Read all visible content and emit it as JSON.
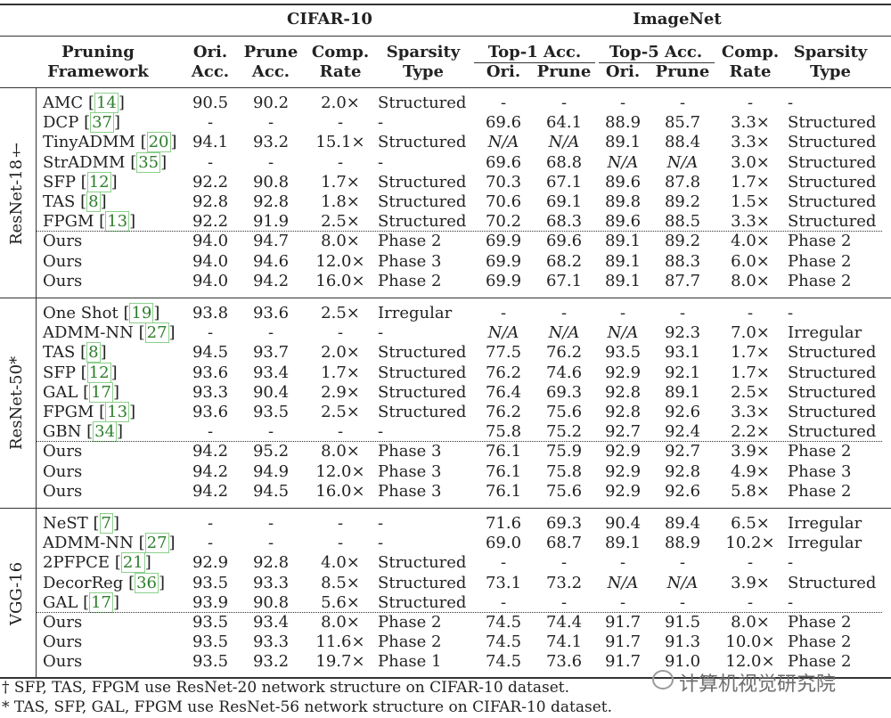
{
  "header": {
    "cifar": "CIFAR-10",
    "imagenet": "ImageNet",
    "pruning_framework": [
      "Pruning",
      "Framework"
    ],
    "ori_acc": [
      "Ori.",
      "Acc."
    ],
    "prune_acc": [
      "Prune",
      "Acc."
    ],
    "comp_rate": [
      "Comp.",
      "Rate"
    ],
    "sparsity_type": [
      "Sparsity",
      "Type"
    ],
    "top1": "Top-1 Acc.",
    "top5": "Top-5 Acc.",
    "ori": "Ori.",
    "prune": "Prune"
  },
  "groups": [
    {
      "label": "ResNet-18†",
      "rows": [
        {
          "name": "AMC",
          "ref": "14",
          "c_ori": "90.5",
          "c_prune": "90.2",
          "c_rate": "2.0×",
          "c_type": "Structured",
          "t1_ori": "-",
          "t1_prune": "-",
          "t5_ori": "-",
          "t5_prune": "-",
          "i_rate": "-",
          "i_type": "-"
        },
        {
          "name": "DCP",
          "ref": "37",
          "c_ori": "-",
          "c_prune": "-",
          "c_rate": "-",
          "c_type": "-",
          "t1_ori": "69.6",
          "t1_prune": "64.1",
          "t5_ori": "88.9",
          "t5_prune": "85.7",
          "i_rate": "3.3×",
          "i_type": "Structured"
        },
        {
          "name": "TinyADMM",
          "ref": "20",
          "c_ori": "94.1",
          "c_prune": "93.2",
          "c_rate": "15.1×",
          "c_type": "Structured",
          "t1_ori": "N/A",
          "t1_prune": "N/A",
          "t5_ori": "89.1",
          "t5_prune": "88.4",
          "i_rate": "3.3×",
          "i_type": "Structured"
        },
        {
          "name": "StrADMM",
          "ref": "35",
          "c_ori": "-",
          "c_prune": "-",
          "c_rate": "-",
          "c_type": "-",
          "t1_ori": "69.6",
          "t1_prune": "68.8",
          "t5_ori": "N/A",
          "t5_prune": "N/A",
          "i_rate": "3.0×",
          "i_type": "Structured"
        },
        {
          "name": "SFP",
          "ref": "12",
          "c_ori": "92.2",
          "c_prune": "90.8",
          "c_rate": "1.7×",
          "c_type": "Structured",
          "t1_ori": "70.3",
          "t1_prune": "67.1",
          "t5_ori": "89.6",
          "t5_prune": "87.8",
          "i_rate": "1.7×",
          "i_type": "Structured"
        },
        {
          "name": "TAS",
          "ref": "8",
          "c_ori": "92.8",
          "c_prune": "92.8",
          "c_rate": "1.8×",
          "c_type": "Structured",
          "t1_ori": "70.6",
          "t1_prune": "69.1",
          "t5_ori": "89.8",
          "t5_prune": "89.2",
          "i_rate": "1.5×",
          "i_type": "Structured"
        },
        {
          "name": "FPGM",
          "ref": "13",
          "c_ori": "92.2",
          "c_prune": "91.9",
          "c_rate": "2.5×",
          "c_type": "Structured",
          "t1_ori": "70.2",
          "t1_prune": "68.3",
          "t5_ori": "89.6",
          "t5_prune": "88.5",
          "i_rate": "3.3×",
          "i_type": "Structured"
        },
        {
          "name": "Ours",
          "ref": "",
          "c_ori": "94.0",
          "c_prune": "94.7",
          "c_rate": "8.0×",
          "c_type": "Phase 2",
          "t1_ori": "69.9",
          "t1_prune": "69.6",
          "t5_ori": "89.1",
          "t5_prune": "89.2",
          "i_rate": "4.0×",
          "i_type": "Phase 2"
        },
        {
          "name": "Ours",
          "ref": "",
          "c_ori": "94.0",
          "c_prune": "94.6",
          "c_rate": "12.0×",
          "c_type": "Phase 3",
          "t1_ori": "69.9",
          "t1_prune": "68.2",
          "t5_ori": "89.1",
          "t5_prune": "88.3",
          "i_rate": "6.0×",
          "i_type": "Phase 2"
        },
        {
          "name": "Ours",
          "ref": "",
          "c_ori": "94.0",
          "c_prune": "94.2",
          "c_rate": "16.0×",
          "c_type": "Phase 2",
          "t1_ori": "69.9",
          "t1_prune": "67.1",
          "t5_ori": "89.1",
          "t5_prune": "87.7",
          "i_rate": "8.0×",
          "i_type": "Phase 2"
        }
      ]
    },
    {
      "label": "ResNet-50*",
      "rows": [
        {
          "name": "One Shot",
          "ref": "19",
          "c_ori": "93.8",
          "c_prune": "93.6",
          "c_rate": "2.5×",
          "c_type": "Irregular",
          "t1_ori": "-",
          "t1_prune": "-",
          "t5_ori": "-",
          "t5_prune": "-",
          "i_rate": "-",
          "i_type": "-"
        },
        {
          "name": "ADMM-NN",
          "ref": "27",
          "c_ori": "-",
          "c_prune": "-",
          "c_rate": "-",
          "c_type": "-",
          "t1_ori": "N/A",
          "t1_prune": "N/A",
          "t5_ori": "N/A",
          "t5_prune": "92.3",
          "i_rate": "7.0×",
          "i_type": "Irregular"
        },
        {
          "name": "TAS",
          "ref": "8",
          "c_ori": "94.5",
          "c_prune": "93.7",
          "c_rate": "2.0×",
          "c_type": "Structured",
          "t1_ori": "77.5",
          "t1_prune": "76.2",
          "t5_ori": "93.5",
          "t5_prune": "93.1",
          "i_rate": "1.7×",
          "i_type": "Structured"
        },
        {
          "name": "SFP",
          "ref": "12",
          "c_ori": "93.6",
          "c_prune": "93.4",
          "c_rate": "1.7×",
          "c_type": "Structured",
          "t1_ori": "76.2",
          "t1_prune": "74.6",
          "t5_ori": "92.9",
          "t5_prune": "92.1",
          "i_rate": "1.7×",
          "i_type": "Structured"
        },
        {
          "name": "GAL",
          "ref": "17",
          "c_ori": "93.3",
          "c_prune": "90.4",
          "c_rate": "2.9×",
          "c_type": "Structured",
          "t1_ori": "76.4",
          "t1_prune": "69.3",
          "t5_ori": "92.8",
          "t5_prune": "89.1",
          "i_rate": "2.5×",
          "i_type": "Structured"
        },
        {
          "name": "FPGM",
          "ref": "13",
          "c_ori": "93.6",
          "c_prune": "93.5",
          "c_rate": "2.5×",
          "c_type": "Structured",
          "t1_ori": "76.2",
          "t1_prune": "75.6",
          "t5_ori": "92.8",
          "t5_prune": "92.6",
          "i_rate": "3.3×",
          "i_type": "Structured"
        },
        {
          "name": "GBN",
          "ref": "34",
          "c_ori": "-",
          "c_prune": "-",
          "c_rate": "-",
          "c_type": "-",
          "t1_ori": "75.8",
          "t1_prune": "75.2",
          "t5_ori": "92.7",
          "t5_prune": "92.4",
          "i_rate": "2.2×",
          "i_type": "Structured"
        },
        {
          "name": "Ours",
          "ref": "",
          "c_ori": "94.2",
          "c_prune": "95.2",
          "c_rate": "8.0×",
          "c_type": "Phase 3",
          "t1_ori": "76.1",
          "t1_prune": "75.9",
          "t5_ori": "92.9",
          "t5_prune": "92.7",
          "i_rate": "3.9×",
          "i_type": "Phase 2"
        },
        {
          "name": "Ours",
          "ref": "",
          "c_ori": "94.2",
          "c_prune": "94.9",
          "c_rate": "12.0×",
          "c_type": "Phase 3",
          "t1_ori": "76.1",
          "t1_prune": "75.8",
          "t5_ori": "92.9",
          "t5_prune": "92.8",
          "i_rate": "4.9×",
          "i_type": "Phase 3"
        },
        {
          "name": "Ours",
          "ref": "",
          "c_ori": "94.2",
          "c_prune": "94.5",
          "c_rate": "16.0×",
          "c_type": "Phase 3",
          "t1_ori": "76.1",
          "t1_prune": "75.6",
          "t5_ori": "92.9",
          "t5_prune": "92.6",
          "i_rate": "5.8×",
          "i_type": "Phase 2"
        }
      ]
    },
    {
      "label": "VGG-16",
      "rows": [
        {
          "name": "NeST",
          "ref": "7",
          "c_ori": "-",
          "c_prune": "-",
          "c_rate": "-",
          "c_type": "-",
          "t1_ori": "71.6",
          "t1_prune": "69.3",
          "t5_ori": "90.4",
          "t5_prune": "89.4",
          "i_rate": "6.5×",
          "i_type": "Irregular"
        },
        {
          "name": "ADMM-NN",
          "ref": "27",
          "c_ori": "-",
          "c_prune": "-",
          "c_rate": "-",
          "c_type": "-",
          "t1_ori": "69.0",
          "t1_prune": "68.7",
          "t5_ori": "89.1",
          "t5_prune": "88.9",
          "i_rate": "10.2×",
          "i_type": "Irregular"
        },
        {
          "name": "2PFPCE",
          "ref": "21",
          "c_ori": "92.9",
          "c_prune": "92.8",
          "c_rate": "4.0×",
          "c_type": "Structured",
          "t1_ori": "-",
          "t1_prune": "-",
          "t5_ori": "-",
          "t5_prune": "-",
          "i_rate": "-",
          "i_type": "-"
        },
        {
          "name": "DecorReg",
          "ref": "36",
          "c_ori": "93.5",
          "c_prune": "93.3",
          "c_rate": "8.5×",
          "c_type": "Structured",
          "t1_ori": "73.1",
          "t1_prune": "73.2",
          "t5_ori": "N/A",
          "t5_prune": "N/A",
          "i_rate": "3.9×",
          "i_type": "Structured"
        },
        {
          "name": "GAL",
          "ref": "17",
          "c_ori": "93.9",
          "c_prune": "90.8",
          "c_rate": "5.6×",
          "c_type": "Structured",
          "t1_ori": "-",
          "t1_prune": "-",
          "t5_ori": "-",
          "t5_prune": "-",
          "i_rate": "-",
          "i_type": "-"
        },
        {
          "name": "Ours",
          "ref": "",
          "c_ori": "93.5",
          "c_prune": "93.4",
          "c_rate": "8.0×",
          "c_type": "Phase 2",
          "t1_ori": "74.5",
          "t1_prune": "74.4",
          "t5_ori": "91.7",
          "t5_prune": "91.5",
          "i_rate": "8.0×",
          "i_type": "Phase 2"
        },
        {
          "name": "Ours",
          "ref": "",
          "c_ori": "93.5",
          "c_prune": "93.3",
          "c_rate": "11.6×",
          "c_type": "Phase 2",
          "t1_ori": "74.5",
          "t1_prune": "74.1",
          "t5_ori": "91.7",
          "t5_prune": "91.3",
          "i_rate": "10.0×",
          "i_type": "Phase 2"
        },
        {
          "name": "Ours",
          "ref": "",
          "c_ori": "93.5",
          "c_prune": "93.2",
          "c_rate": "19.7×",
          "c_type": "Phase 1",
          "t1_ori": "74.5",
          "t1_prune": "73.6",
          "t5_ori": "91.7",
          "t5_prune": "91.0",
          "i_rate": "12.0×",
          "i_type": "Phase 2"
        }
      ]
    }
  ],
  "footnotes": [
    "† SFP, TAS, FPGM use ResNet-20 network structure on CIFAR-10 dataset.",
    "* TAS, SFP, GAL, FPGM use ResNet-56 network structure on CIFAR-10 dataset."
  ],
  "watermark": "计算机视觉研究院"
}
